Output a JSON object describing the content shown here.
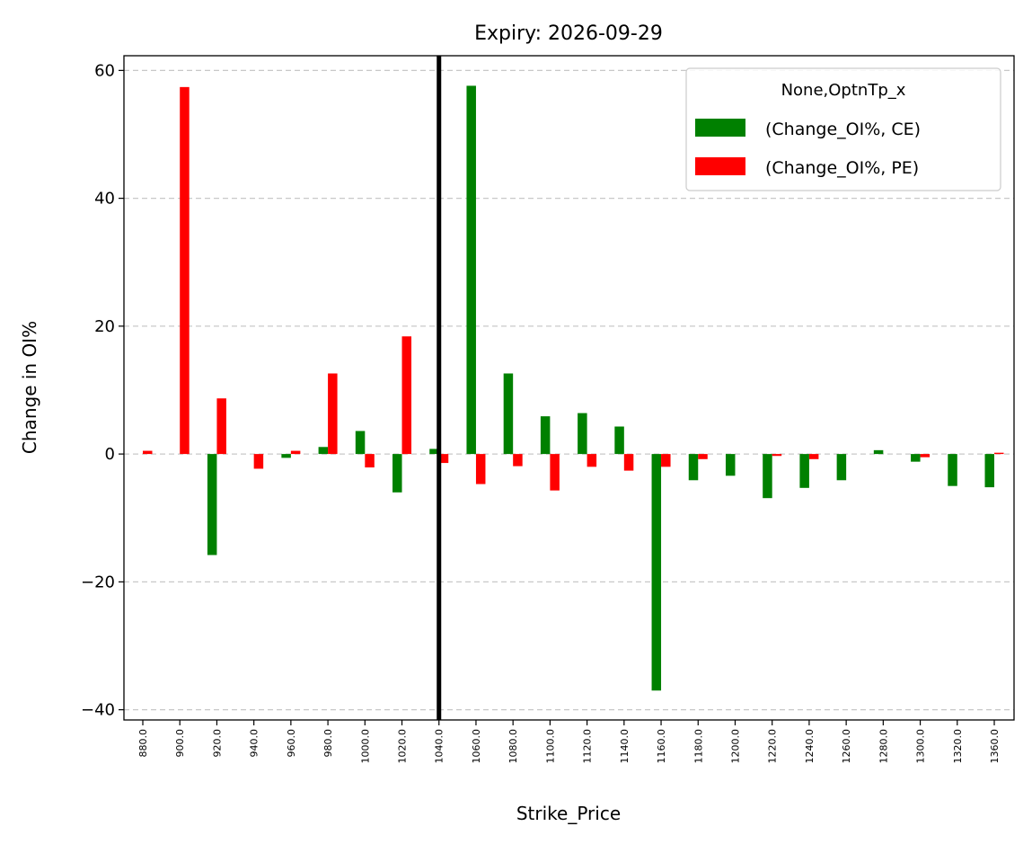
{
  "chart_data": {
    "type": "bar",
    "title": "Expiry: 2026-09-29",
    "xlabel": "Strike_Price",
    "ylabel": "Change in OI%",
    "categories": [
      "880.0",
      "900.0",
      "920.0",
      "940.0",
      "960.0",
      "980.0",
      "1000.0",
      "1020.0",
      "1040.0",
      "1060.0",
      "1080.0",
      "1100.0",
      "1120.0",
      "1140.0",
      "1160.0",
      "1180.0",
      "1200.0",
      "1220.0",
      "1240.0",
      "1260.0",
      "1280.0",
      "1300.0",
      "1320.0",
      "1360.0"
    ],
    "series": [
      {
        "name": "(Change_OI%, CE)",
        "color": "#008000",
        "values": [
          0,
          0,
          -15.8,
          0,
          -0.6,
          1.1,
          3.6,
          -6.0,
          0.8,
          57.6,
          12.6,
          5.9,
          6.4,
          4.3,
          -37.0,
          -4.1,
          -3.4,
          -6.9,
          -5.3,
          -4.1,
          0.6,
          -1.2,
          -5.0,
          -5.2
        ]
      },
      {
        "name": "(Change_OI%, PE)",
        "color": "#ff0000",
        "values": [
          0.5,
          57.4,
          8.7,
          -2.3,
          0.5,
          12.6,
          -2.1,
          18.4,
          -1.4,
          -4.7,
          -1.9,
          -5.7,
          -2.0,
          -2.6,
          -2.0,
          -0.8,
          0,
          -0.3,
          -0.8,
          0,
          0,
          -0.5,
          0,
          0.2
        ]
      }
    ],
    "ylim": [
      -41.6,
      62.3
    ],
    "yticks": [
      -40,
      -20,
      0,
      20,
      40,
      60
    ],
    "ytick_labels": [
      "−40",
      "−20",
      "0",
      "20",
      "40",
      "60"
    ],
    "grid": "y-dashed",
    "legend": {
      "title": "None,OptnTp_x",
      "placement": "top-right"
    },
    "vline_category": "1040.0",
    "vline_color": "#000000"
  }
}
